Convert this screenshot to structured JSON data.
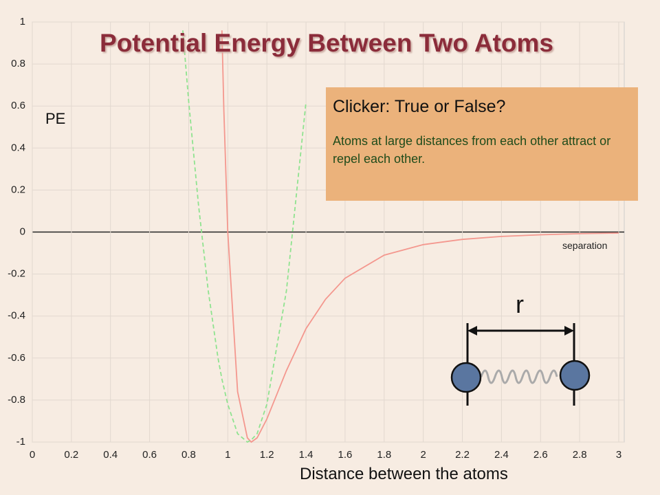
{
  "title": "Potential Energy Between Two Atoms",
  "clicker": {
    "title": "Clicker: True or False?",
    "text": "Atoms at large distances from each other attract or repel each other."
  },
  "illustration": {
    "separation_label": "separation",
    "r_label": "r"
  },
  "chart_data": {
    "type": "line",
    "ylabel": "PE",
    "xlabel": "Distance between the atoms",
    "x": [
      0.77,
      0.8,
      0.85,
      0.9,
      0.95,
      0.97,
      0.98,
      1.0,
      1.05,
      1.1,
      1.12,
      1.15,
      1.2,
      1.3,
      1.4,
      1.5,
      1.6,
      1.8,
      2.0,
      2.2,
      2.4,
      2.6,
      2.8,
      3.0
    ],
    "series": [
      {
        "color": "#f4978e",
        "dashed": false,
        "values": [
          null,
          null,
          null,
          null,
          null,
          0.96,
          0.58,
          0,
          -0.76,
          -0.98,
          -1,
          -0.98,
          -0.89,
          -0.66,
          -0.46,
          -0.32,
          -0.22,
          -0.11,
          -0.06,
          -0.035,
          -0.021,
          -0.013,
          -0.008,
          -0.005
        ]
      },
      {
        "color": "#8fe38f",
        "dashed": true,
        "values": [
          0.96,
          0.62,
          0.13,
          -0.28,
          -0.6,
          -0.7,
          -0.74,
          -0.82,
          -0.96,
          -1,
          -0.99,
          -0.96,
          -0.82,
          -0.28,
          0.62,
          null,
          null,
          null,
          null,
          null,
          null,
          null,
          null,
          null
        ]
      }
    ],
    "xlim": [
      0,
      3
    ],
    "ylim": [
      -1,
      1
    ],
    "xticks": [
      0,
      0.2,
      0.4,
      0.6,
      0.8,
      1,
      1.2,
      1.4,
      1.6,
      1.8,
      2,
      2.2,
      2.4,
      2.6,
      2.8,
      3
    ],
    "yticks": [
      -1,
      -0.8,
      -0.6,
      -0.4,
      -0.2,
      0,
      0.2,
      0.4,
      0.6,
      0.8,
      1
    ],
    "grid": true
  }
}
